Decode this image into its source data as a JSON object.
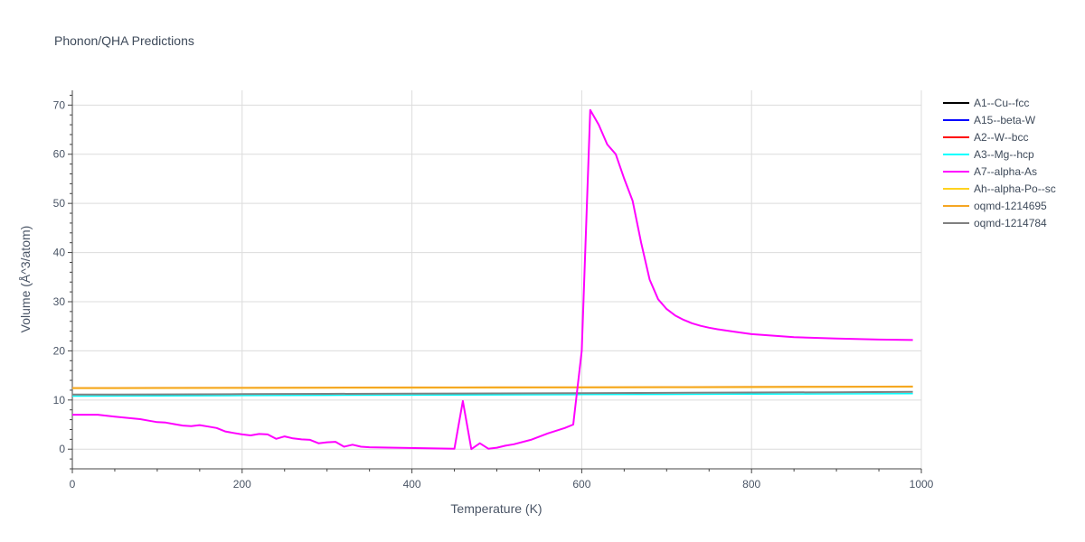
{
  "chart_data": {
    "type": "line",
    "title": "Phonon/QHA Predictions",
    "xlabel": "Temperature (K)",
    "ylabel": "Volume (Å^3/atom)",
    "xlim": [
      0,
      1000
    ],
    "ylim": [
      -4,
      73
    ],
    "x_ticks": [
      0,
      200,
      400,
      600,
      800,
      1000
    ],
    "y_ticks": [
      0,
      10,
      20,
      30,
      40,
      50,
      60,
      70
    ],
    "grid": true,
    "legend_position": "right",
    "series": [
      {
        "name": "A1--Cu--fcc",
        "color": "#000000",
        "x": [],
        "y": []
      },
      {
        "name": "A15--beta-W",
        "color": "#0000ff",
        "x": [],
        "y": []
      },
      {
        "name": "A2--W--bcc",
        "color": "#ff0000",
        "x": [],
        "y": []
      },
      {
        "name": "A3--Mg--hcp",
        "color": "#00ffff",
        "x": [
          0,
          100,
          200,
          300,
          400,
          500,
          600,
          700,
          800,
          900,
          990
        ],
        "y": [
          10.8,
          10.85,
          10.9,
          10.95,
          11.0,
          11.05,
          11.1,
          11.15,
          11.2,
          11.25,
          11.3
        ]
      },
      {
        "name": "A7--alpha-As",
        "color": "#ff00ff",
        "x": [
          0,
          30,
          50,
          80,
          90,
          100,
          110,
          120,
          130,
          140,
          150,
          160,
          170,
          180,
          190,
          200,
          210,
          220,
          230,
          240,
          250,
          260,
          270,
          280,
          290,
          300,
          310,
          320,
          330,
          340,
          350,
          380,
          450,
          460,
          470,
          480,
          490,
          500,
          510,
          520,
          540,
          560,
          580,
          590,
          600,
          610,
          620,
          630,
          640,
          650,
          660,
          670,
          680,
          690,
          700,
          710,
          720,
          730,
          740,
          750,
          760,
          780,
          800,
          850,
          900,
          950,
          990
        ],
        "y": [
          7.0,
          7.0,
          6.6,
          6.1,
          5.8,
          5.5,
          5.4,
          5.1,
          4.8,
          4.7,
          4.9,
          4.6,
          4.3,
          3.6,
          3.3,
          3.0,
          2.8,
          3.1,
          3.0,
          2.1,
          2.6,
          2.2,
          2.0,
          1.9,
          1.2,
          1.4,
          1.5,
          0.5,
          0.9,
          0.5,
          0.4,
          0.3,
          0.1,
          9.8,
          0.0,
          1.2,
          0.1,
          0.3,
          0.7,
          1.0,
          1.9,
          3.2,
          4.3,
          5.0,
          20.0,
          69.0,
          66.0,
          62.0,
          60.0,
          55.0,
          50.5,
          42.0,
          34.5,
          30.5,
          28.5,
          27.2,
          26.3,
          25.6,
          25.1,
          24.7,
          24.4,
          23.9,
          23.4,
          22.8,
          22.5,
          22.3,
          22.2
        ]
      },
      {
        "name": "Ah--alpha-Po--sc",
        "color": "#ffd21f",
        "x": [
          0,
          100,
          200,
          300,
          400,
          500,
          600,
          700,
          800,
          900,
          990
        ],
        "y": [
          12.4,
          12.42,
          12.45,
          12.48,
          12.5,
          12.52,
          12.55,
          12.58,
          12.62,
          12.66,
          12.7
        ]
      },
      {
        "name": "oqmd-1214695",
        "color": "#f5a623",
        "x": [
          0,
          100,
          200,
          300,
          400,
          500,
          600,
          700,
          800,
          900,
          990
        ],
        "y": [
          12.45,
          12.47,
          12.5,
          12.53,
          12.55,
          12.57,
          12.6,
          12.63,
          12.67,
          12.71,
          12.75
        ]
      },
      {
        "name": "oqmd-1214784",
        "color": "#808080",
        "x": [
          0,
          100,
          200,
          300,
          400,
          500,
          600,
          700,
          800,
          900,
          990
        ],
        "y": [
          11.1,
          11.15,
          11.2,
          11.25,
          11.3,
          11.35,
          11.4,
          11.45,
          11.52,
          11.58,
          11.65
        ]
      }
    ]
  }
}
